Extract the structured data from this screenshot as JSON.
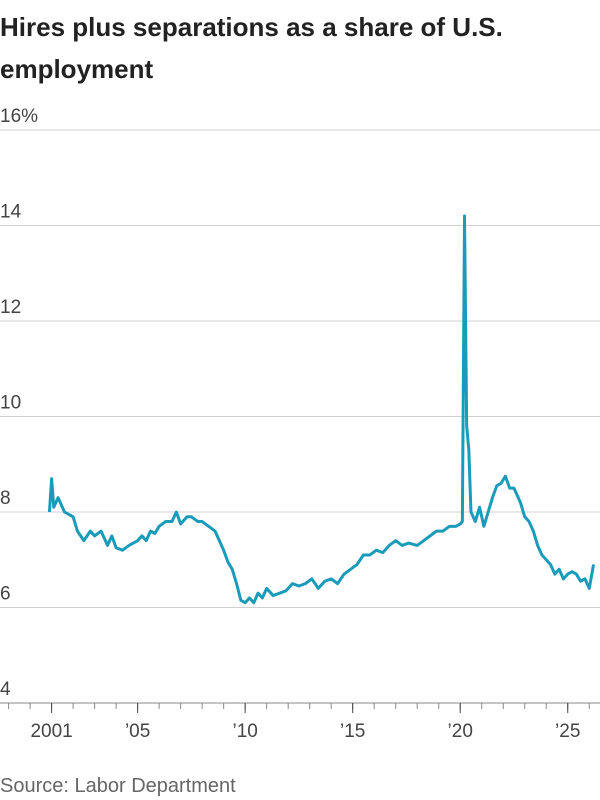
{
  "chart_data": {
    "type": "line",
    "title": "Hires plus separations as a share of U.S. employment",
    "source": "Source: Labor Department",
    "color": "#1a9bba",
    "grid": true,
    "xlim": [
      1998.6,
      2026.5
    ],
    "ylim": [
      4,
      16
    ],
    "yticks": [
      4,
      6,
      8,
      10,
      12,
      14,
      {
        "value": 16,
        "label": "16%"
      }
    ],
    "xticks": [
      {
        "value": 2001,
        "label": "2001"
      },
      {
        "value": 2005,
        "label": "’05"
      },
      {
        "value": 2010,
        "label": "’10"
      },
      {
        "value": 2015,
        "label": "’15"
      },
      {
        "value": 2020,
        "label": "’20"
      },
      {
        "value": 2025,
        "label": "’25"
      }
    ],
    "x": [
      2000.9,
      2001.0,
      2001.1,
      2001.3,
      2001.6,
      2002.0,
      2002.2,
      2002.5,
      2002.8,
      2003.0,
      2003.3,
      2003.6,
      2003.8,
      2004.0,
      2004.3,
      2004.6,
      2005.0,
      2005.2,
      2005.4,
      2005.6,
      2005.8,
      2006.0,
      2006.3,
      2006.6,
      2006.8,
      2007.0,
      2007.3,
      2007.5,
      2007.8,
      2008.0,
      2008.3,
      2008.6,
      2008.8,
      2009.0,
      2009.2,
      2009.4,
      2009.6,
      2009.8,
      2010.0,
      2010.2,
      2010.4,
      2010.6,
      2010.8,
      2011.0,
      2011.3,
      2011.6,
      2011.9,
      2012.2,
      2012.5,
      2012.8,
      2013.1,
      2013.4,
      2013.7,
      2014.0,
      2014.3,
      2014.6,
      2014.9,
      2015.2,
      2015.5,
      2015.8,
      2016.1,
      2016.4,
      2016.7,
      2017.0,
      2017.3,
      2017.6,
      2018.0,
      2018.3,
      2018.6,
      2018.9,
      2019.2,
      2019.5,
      2019.8,
      2020.0,
      2020.1,
      2020.2,
      2020.3,
      2020.4,
      2020.5,
      2020.7,
      2020.9,
      2021.1,
      2021.3,
      2021.5,
      2021.7,
      2021.9,
      2022.1,
      2022.3,
      2022.5,
      2022.8,
      2023.0,
      2023.2,
      2023.4,
      2023.6,
      2023.8,
      2024.0,
      2024.2,
      2024.4,
      2024.6,
      2024.8,
      2025.0,
      2025.2,
      2025.4,
      2025.6,
      2025.8,
      2026.0,
      2026.2
    ],
    "values": [
      8.0,
      8.7,
      8.1,
      8.3,
      8.0,
      7.9,
      7.6,
      7.4,
      7.6,
      7.5,
      7.6,
      7.3,
      7.5,
      7.25,
      7.2,
      7.3,
      7.4,
      7.5,
      7.4,
      7.6,
      7.55,
      7.7,
      7.8,
      7.8,
      8.0,
      7.75,
      7.9,
      7.9,
      7.8,
      7.8,
      7.7,
      7.6,
      7.4,
      7.2,
      6.95,
      6.8,
      6.5,
      6.15,
      6.1,
      6.2,
      6.1,
      6.3,
      6.2,
      6.4,
      6.25,
      6.3,
      6.35,
      6.5,
      6.45,
      6.5,
      6.6,
      6.4,
      6.55,
      6.6,
      6.5,
      6.7,
      6.8,
      6.9,
      7.1,
      7.1,
      7.2,
      7.15,
      7.3,
      7.4,
      7.3,
      7.35,
      7.3,
      7.4,
      7.5,
      7.6,
      7.6,
      7.7,
      7.7,
      7.75,
      7.8,
      14.2,
      9.8,
      9.3,
      8.0,
      7.8,
      8.1,
      7.7,
      8.0,
      8.3,
      8.55,
      8.6,
      8.75,
      8.5,
      8.5,
      8.2,
      7.9,
      7.8,
      7.6,
      7.3,
      7.1,
      7.0,
      6.9,
      6.7,
      6.8,
      6.6,
      6.7,
      6.75,
      6.7,
      6.55,
      6.6,
      6.4,
      6.9
    ]
  }
}
